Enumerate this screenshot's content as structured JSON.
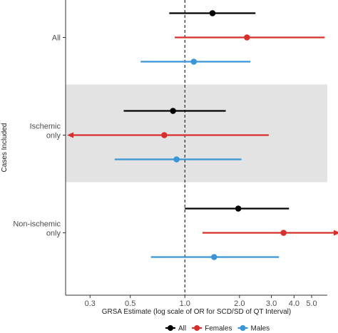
{
  "chart_data": {
    "type": "forest",
    "xlabel": "GRSA Estimate (log scale of OR for SCD/SD of QT Interval)",
    "ylabel": "Cases Included",
    "x_scale": "log",
    "xlim": [
      0.22,
      6.1
    ],
    "x_ticks": [
      0.3,
      0.5,
      1.0,
      2.0,
      3.0,
      4.0,
      5.0
    ],
    "x_tick_labels": [
      "0.3",
      "0.5",
      "1.0",
      "2.0",
      "3.0",
      "4.0",
      "5.0"
    ],
    "reference_line": 1.0,
    "reference_line_style": "dashed",
    "shaded_group": "Ischemic only",
    "groups": [
      {
        "label": "All",
        "lines": [
          "All"
        ]
      },
      {
        "label": "Ischemic only",
        "lines": [
          "Ischemic",
          "only"
        ]
      },
      {
        "label": "Non-ischemic only",
        "lines": [
          "Non-ischemic",
          "only"
        ]
      }
    ],
    "series": [
      {
        "name": "All",
        "color": "#000000"
      },
      {
        "name": "Females",
        "color": "#d7302b"
      },
      {
        "name": "Males",
        "color": "#3a95d6"
      }
    ],
    "rows": [
      {
        "group": "All",
        "series": "All",
        "estimate": 1.42,
        "lower": 0.82,
        "upper": 2.45,
        "lower_arrow": false,
        "upper_arrow": false
      },
      {
        "group": "All",
        "series": "Females",
        "estimate": 2.2,
        "lower": 0.88,
        "upper": 5.9,
        "lower_arrow": false,
        "upper_arrow": false
      },
      {
        "group": "All",
        "series": "Males",
        "estimate": 1.12,
        "lower": 0.57,
        "upper": 2.3,
        "lower_arrow": false,
        "upper_arrow": false
      },
      {
        "group": "Ischemic only",
        "series": "All",
        "estimate": 0.86,
        "lower": 0.46,
        "upper": 1.68,
        "lower_arrow": false,
        "upper_arrow": false
      },
      {
        "group": "Ischemic only",
        "series": "Females",
        "estimate": 0.77,
        "lower": 0.23,
        "upper": 2.9,
        "lower_arrow": true,
        "upper_arrow": false
      },
      {
        "group": "Ischemic only",
        "series": "Males",
        "estimate": 0.9,
        "lower": 0.41,
        "upper": 2.05,
        "lower_arrow": false,
        "upper_arrow": false
      },
      {
        "group": "Non-ischemic only",
        "series": "All",
        "estimate": 1.97,
        "lower": 1.0,
        "upper": 3.75,
        "lower_arrow": false,
        "upper_arrow": false
      },
      {
        "group": "Non-ischemic only",
        "series": "Females",
        "estimate": 3.5,
        "lower": 1.25,
        "upper": 6.0,
        "lower_arrow": false,
        "upper_arrow": true
      },
      {
        "group": "Non-ischemic only",
        "series": "Males",
        "estimate": 1.45,
        "lower": 0.65,
        "upper": 3.3,
        "lower_arrow": false,
        "upper_arrow": false
      }
    ],
    "legend": {
      "position": "bottom",
      "entries": [
        "All",
        "Females",
        "Males"
      ]
    }
  }
}
